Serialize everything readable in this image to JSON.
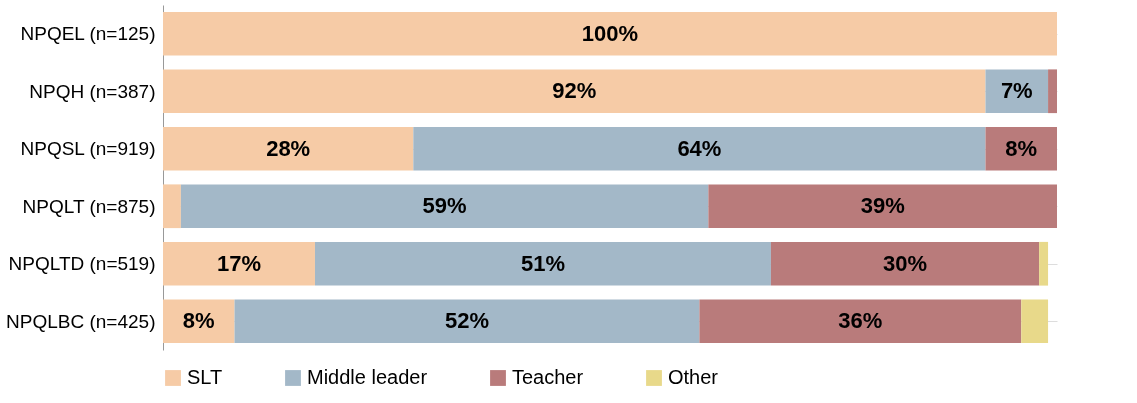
{
  "chart_data": {
    "type": "bar",
    "orientation": "horizontal",
    "stacked": true,
    "categories": [
      "NPQEL (n=125)",
      "NPQH (n=387)",
      "NPQSL (n=919)",
      "NPQLT (n=875)",
      "NPQLTD (n=519)",
      "NPQLBC (n=425)"
    ],
    "series": [
      {
        "name": "SLT",
        "color": "#f6cba6",
        "values": [
          100,
          92,
          28,
          2,
          17,
          8
        ],
        "value_labels": [
          "100%",
          "92%",
          "28%",
          null,
          "17%",
          "8%"
        ]
      },
      {
        "name": "Middle leader",
        "color": "#a3b8c8",
        "values": [
          0,
          7,
          64,
          59,
          51,
          52
        ],
        "value_labels": [
          null,
          "7%",
          "64%",
          "59%",
          "51%",
          "52%"
        ]
      },
      {
        "name": "Teacher",
        "color": "#b97b7b",
        "values": [
          0,
          1,
          8,
          39,
          30,
          36
        ],
        "value_labels": [
          null,
          null,
          "8%",
          "39%",
          "30%",
          "36%"
        ]
      },
      {
        "name": "Other",
        "color": "#e8d98a",
        "values": [
          0,
          0,
          0,
          0,
          1,
          3
        ],
        "value_labels": [
          null,
          null,
          null,
          null,
          null,
          null
        ]
      }
    ],
    "xlim": [
      0,
      100
    ],
    "tick_labels": "y",
    "legend": "bottom"
  }
}
